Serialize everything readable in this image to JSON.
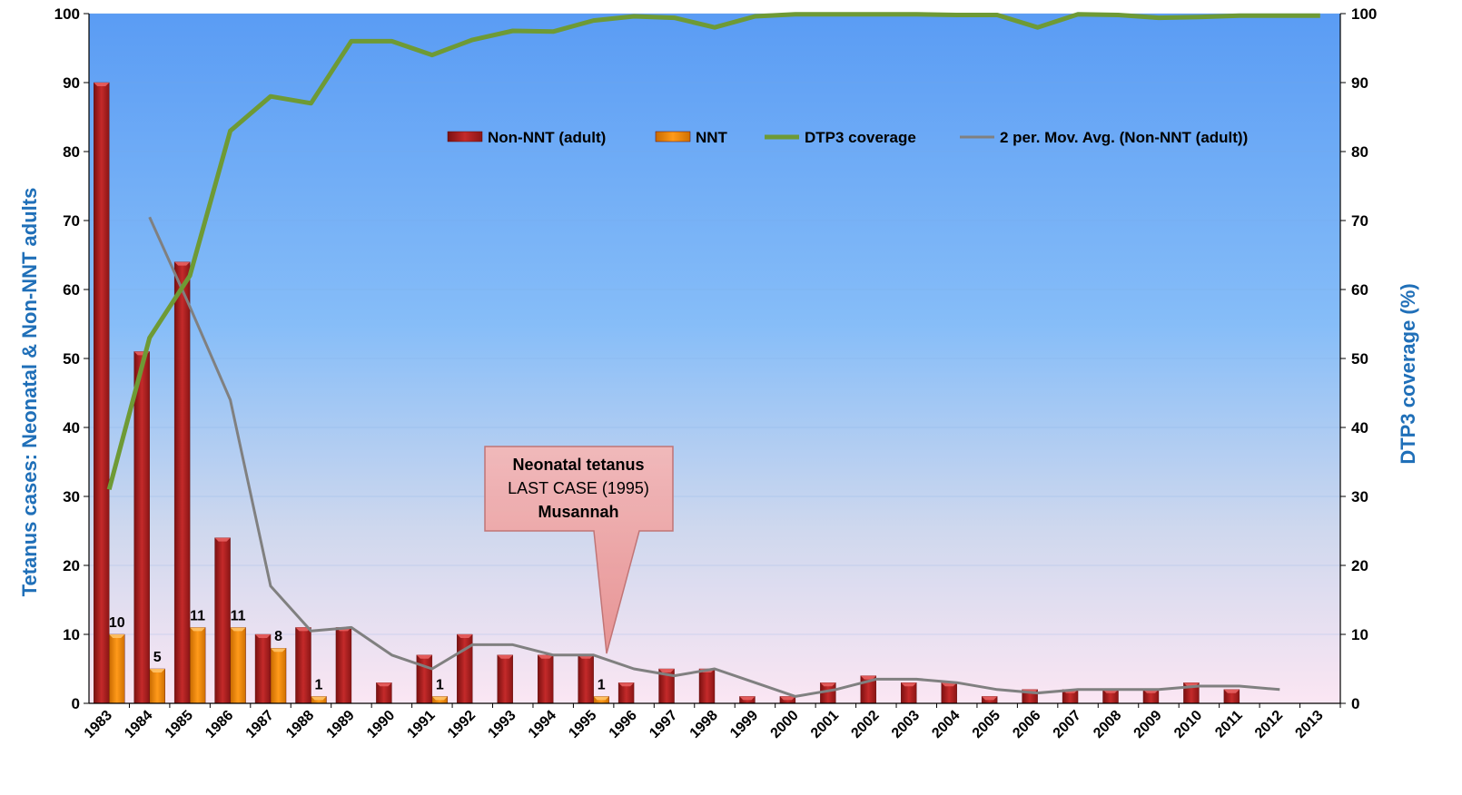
{
  "chart_data": {
    "type": "bar",
    "title": "",
    "xlabel": "",
    "ylabel": "Tetanus cases: Neonatal & Non-NNT adults",
    "y2label": "DTP3 coverage (%)",
    "ylim": [
      0,
      100
    ],
    "y2lim": [
      0,
      100
    ],
    "yticks": [
      0,
      10,
      20,
      30,
      40,
      50,
      60,
      70,
      80,
      90,
      100
    ],
    "legend_position": "top-right",
    "categories": [
      "1983",
      "1984",
      "1985",
      "1986",
      "1987",
      "1988",
      "1989",
      "1990",
      "1991",
      "1992",
      "1993",
      "1994",
      "1995",
      "1996",
      "1997",
      "1998",
      "1999",
      "2000",
      "2001",
      "2002",
      "2003",
      "2004",
      "2005",
      "2006",
      "2007",
      "2008",
      "2009",
      "2010",
      "2011",
      "2012",
      "2013"
    ],
    "series": [
      {
        "name": "Non-NNT (adult)",
        "kind": "bar",
        "axis": "left",
        "color": "#b22222",
        "values": [
          90,
          51,
          64,
          24,
          10,
          11,
          11,
          3,
          7,
          10,
          7,
          7,
          7,
          3,
          5,
          5,
          1,
          1,
          3,
          4,
          3,
          3,
          1,
          2,
          2,
          2,
          2,
          3,
          2,
          null,
          null
        ]
      },
      {
        "name": "NNT",
        "kind": "bar",
        "axis": "left",
        "color": "#f0900f",
        "values": [
          10,
          5,
          11,
          11,
          8,
          1,
          null,
          null,
          1,
          null,
          null,
          null,
          1,
          null,
          null,
          null,
          null,
          null,
          null,
          null,
          null,
          null,
          null,
          null,
          null,
          null,
          null,
          null,
          null,
          null,
          null
        ],
        "data_labels": [
          "10",
          "5",
          "11",
          "11",
          "8",
          "1",
          "",
          "",
          "1",
          "",
          "",
          "",
          "1",
          "",
          "",
          "",
          "",
          "",
          "",
          "",
          "",
          "",
          "",
          "",
          "",
          "",
          "",
          "",
          "",
          "",
          ""
        ]
      },
      {
        "name": "DTP3 coverage",
        "kind": "line",
        "axis": "right",
        "color": "#6e9a35",
        "values": [
          31,
          53,
          62,
          83,
          88,
          87,
          96,
          96,
          94,
          96.2,
          97.5,
          97.4,
          99,
          99.6,
          99.4,
          98,
          99.6,
          99.9,
          99.9,
          99.9,
          99.9,
          99.8,
          99.8,
          98,
          99.9,
          99.8,
          99.4,
          99.5,
          99.7,
          99.7,
          99.7
        ]
      },
      {
        "name": "2 per. Mov. Avg. (Non-NNT (adult))",
        "kind": "line",
        "axis": "left",
        "color": "#808080",
        "values": [
          null,
          70.5,
          57.5,
          44,
          17,
          10.5,
          11,
          7,
          5,
          8.5,
          8.5,
          7,
          7,
          5,
          4,
          5,
          3,
          1,
          2,
          3.5,
          3.5,
          3,
          2,
          1.5,
          2,
          2,
          2,
          2.5,
          2.5,
          2,
          null
        ]
      }
    ],
    "annotation": {
      "line1": "Neonatal tetanus",
      "line2": "LAST CASE (1995)",
      "line3": "Musannah",
      "points_to": "1995"
    }
  }
}
